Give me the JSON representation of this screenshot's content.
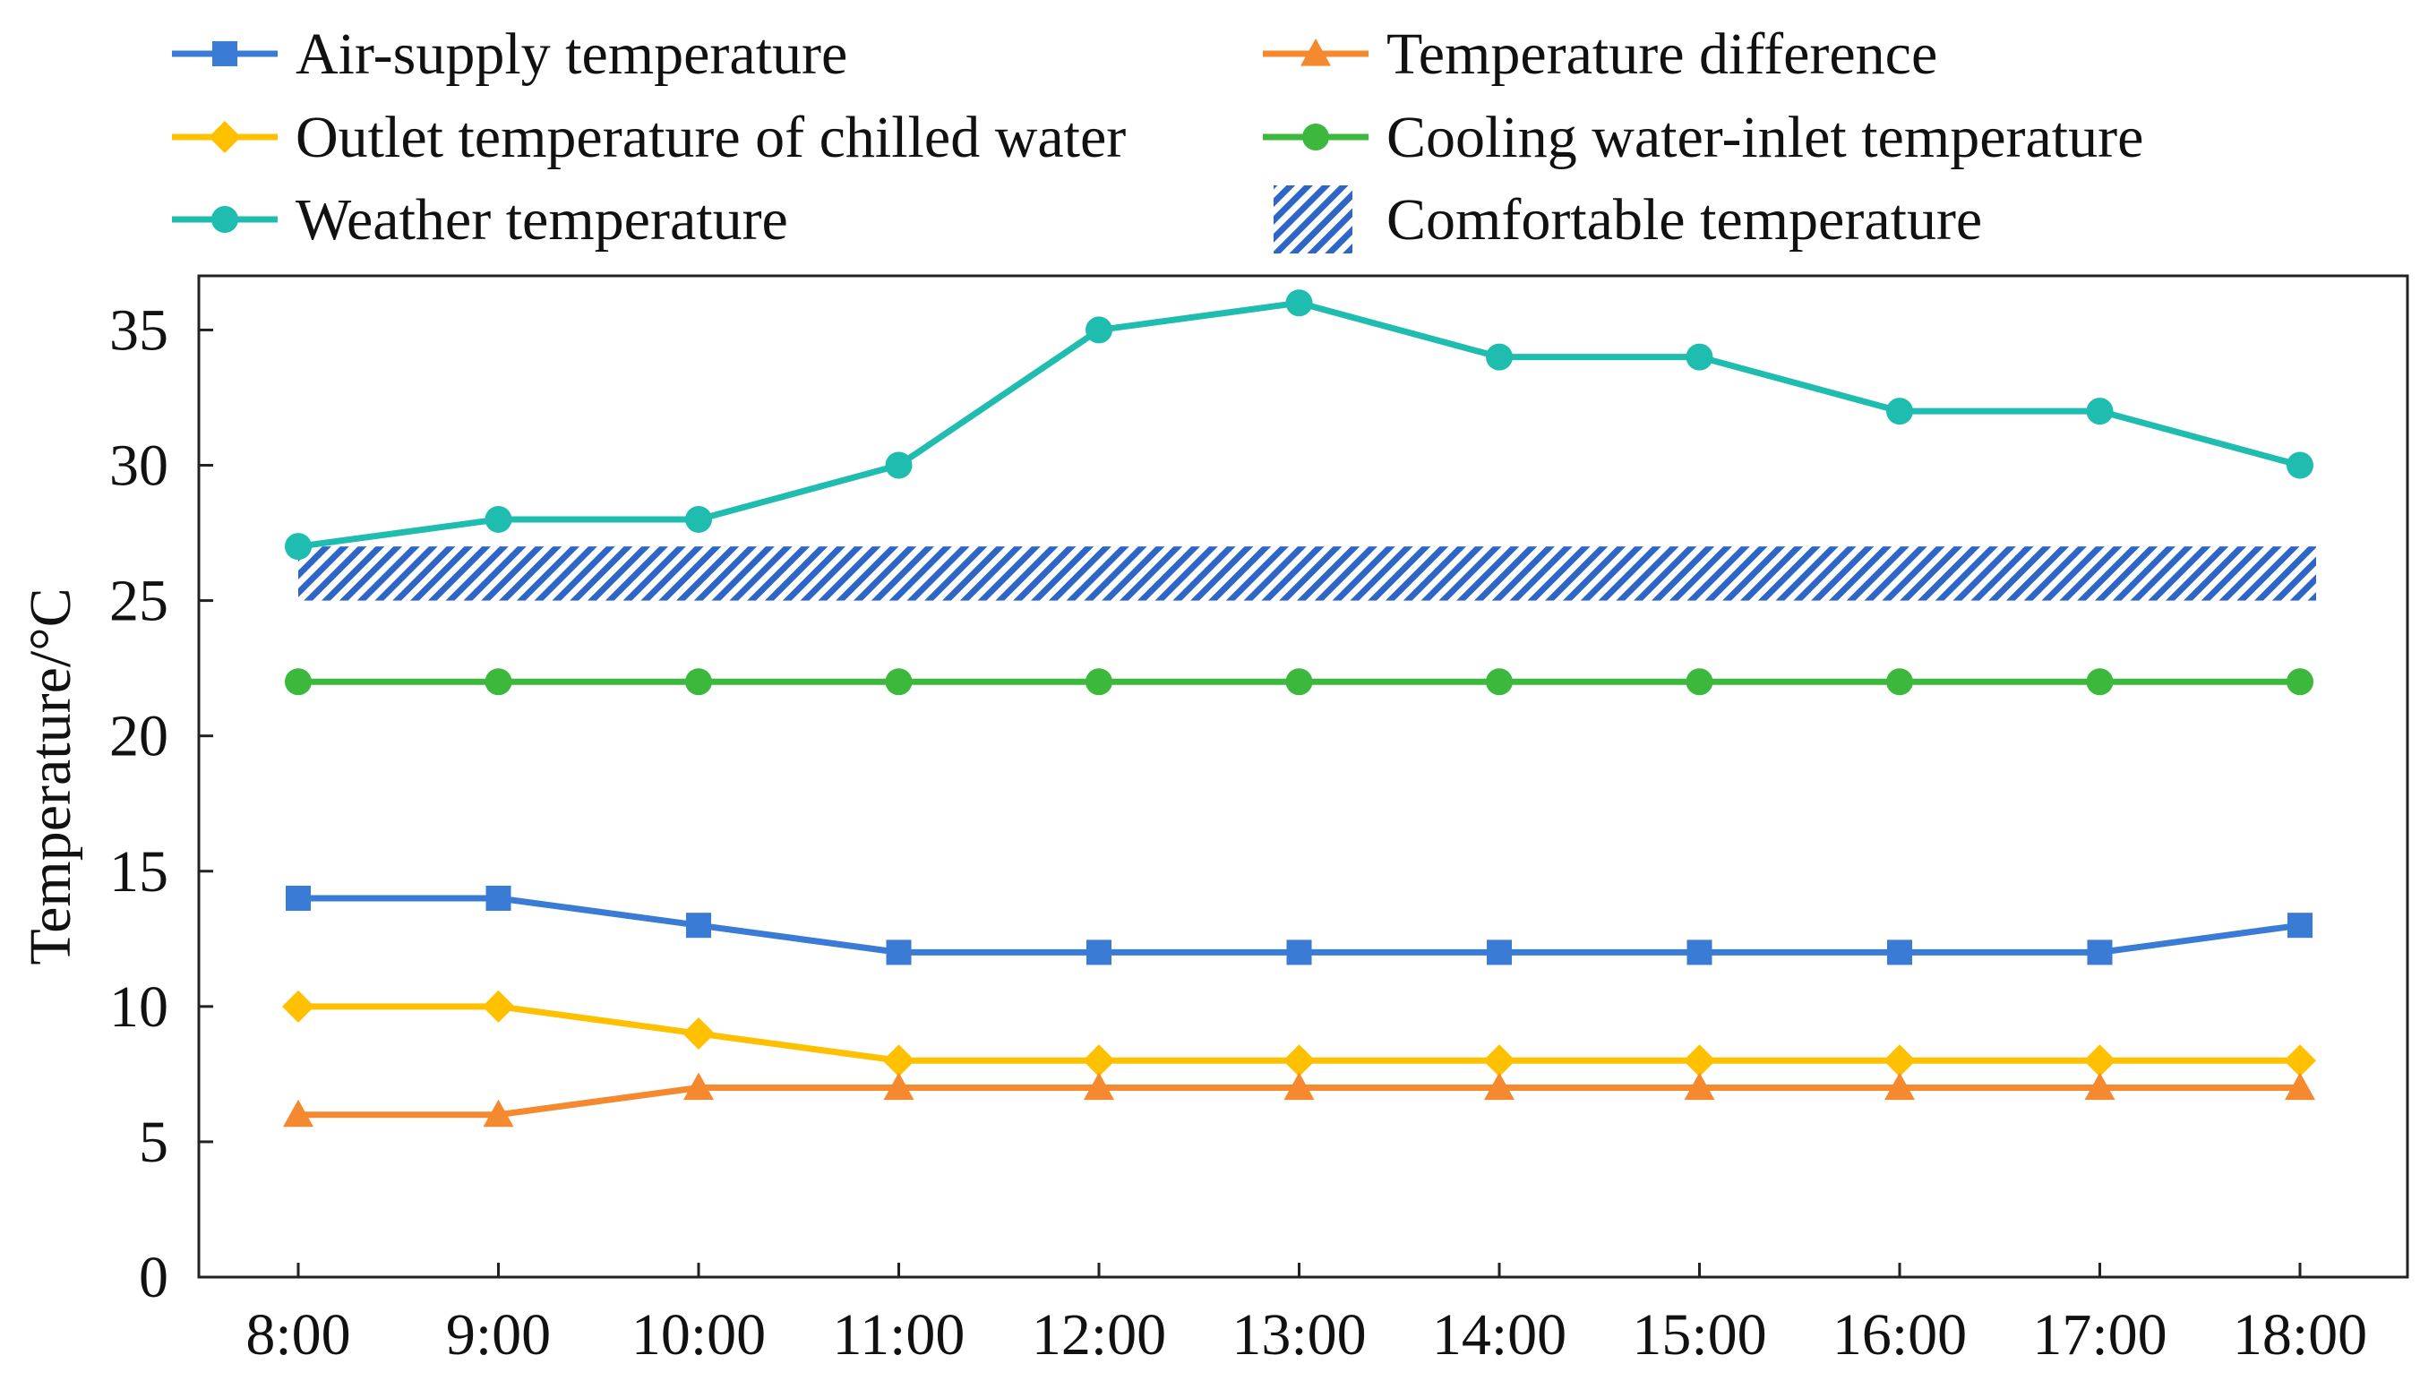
{
  "chart_data": {
    "type": "line",
    "title": "",
    "xlabel": "",
    "ylabel": "Temperature/°C",
    "categories": [
      "8:00",
      "9:00",
      "10:00",
      "11:00",
      "12:00",
      "13:00",
      "14:00",
      "15:00",
      "16:00",
      "17:00",
      "18:00"
    ],
    "ylim": [
      0,
      37
    ],
    "yticks": [
      0,
      5,
      10,
      15,
      20,
      25,
      30,
      35
    ],
    "grid": false,
    "legend_position": "top",
    "series": [
      {
        "name": "Air-supply temperature",
        "color": "#3a7bd5",
        "marker": "square",
        "values": [
          14,
          14,
          13,
          12,
          12,
          12,
          12,
          12,
          12,
          12,
          13
        ]
      },
      {
        "name": "Temperature difference",
        "color": "#f4892f",
        "marker": "triangle",
        "values": [
          6,
          6,
          7,
          7,
          7,
          7,
          7,
          7,
          7,
          7,
          7
        ]
      },
      {
        "name": "Outlet temperature of chilled water",
        "color": "#ffc000",
        "marker": "diamond",
        "values": [
          10,
          10,
          9,
          8,
          8,
          8,
          8,
          8,
          8,
          8,
          8
        ]
      },
      {
        "name": "Cooling water-inlet temperature",
        "color": "#3cb83c",
        "marker": "circle",
        "values": [
          22,
          22,
          22,
          22,
          22,
          22,
          22,
          22,
          22,
          22,
          22
        ]
      },
      {
        "name": "Weather temperature",
        "color": "#1fbcb0",
        "marker": "circle",
        "values": [
          27,
          28,
          28,
          30,
          35,
          36,
          34,
          34,
          32,
          32,
          30
        ]
      }
    ],
    "bands": [
      {
        "name": "Comfortable temperature",
        "color": "#2e66c8",
        "pattern": "diagonal-hatch",
        "y_range": [
          25,
          27
        ]
      }
    ]
  }
}
